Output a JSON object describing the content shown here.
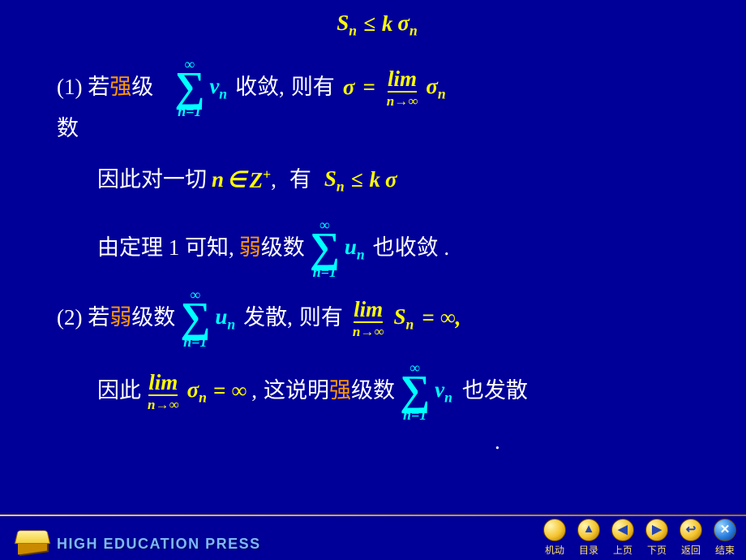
{
  "colors": {
    "background": "#000099",
    "white": "#ffffff",
    "yellow": "#ffff00",
    "cyan": "#00ffff",
    "orange": "#ff9900",
    "footerAccent": "#ffd24a",
    "pressText": "#7db8ff"
  },
  "topIneq": {
    "lhs": "S",
    "lsub": "n",
    "op": "≤",
    "k": "k",
    "sigma": "σ",
    "rsub": "n"
  },
  "line1": {
    "prefix": "(1) 若",
    "strong": "强",
    "suffixA": "级",
    "suffixB": "数",
    "sumTop": "∞",
    "sumBottom": "n=1",
    "term": "v",
    "termSub": "n",
    "converge": "收敛,",
    "then": "则有",
    "eqL": "σ",
    "eqOp": "=",
    "limTop": "lim",
    "limBot": "n→∞",
    "eqR": "σ",
    "eqRSub": "n"
  },
  "line2": {
    "a": "因此对一切",
    "n": "n",
    "in": "∈",
    "Z": "Z",
    "plus": "+",
    "comma": ",",
    "have": "有",
    "S": "S",
    "Ssub": "n",
    "op": "≤",
    "k": "k",
    "sigma": "σ"
  },
  "line3": {
    "a": "由定理 1 可知,",
    "weak": "弱",
    "b": "级数",
    "sumTop": "∞",
    "sumBottom": "n=1",
    "term": "u",
    "termSub": "n",
    "c": "也收敛 ."
  },
  "line4": {
    "prefix": "(2) 若",
    "weak": "弱",
    "a": "级数",
    "sumTop": "∞",
    "sumBottom": "n=1",
    "term": "u",
    "termSub": "n",
    "diverge": "发散,",
    "then": "则有",
    "limTop": "lim",
    "limBot": "n→∞",
    "S": "S",
    "Ssub": "n",
    "eq": "= ∞,"
  },
  "line5": {
    "a": "因此",
    "limTop": "lim",
    "limBot": "n→∞",
    "sigma": "σ",
    "ssub": "n",
    "eq": "= ∞",
    "comma": ",",
    "b": "这说明",
    "strong": "强",
    "c": "级数",
    "sumTop": "∞",
    "sumBottom": "n=1",
    "term": "v",
    "termSub": "n",
    "d": "也发散",
    "dot": "."
  },
  "footer": {
    "press": "HIGH EDUCATION PRESS",
    "nav": [
      {
        "label": "机动",
        "glyph": "",
        "name": "nav-auto"
      },
      {
        "label": "目录",
        "glyph": "▲",
        "name": "nav-contents"
      },
      {
        "label": "上页",
        "glyph": "◀",
        "name": "nav-prev"
      },
      {
        "label": "下页",
        "glyph": "▶",
        "name": "nav-next"
      },
      {
        "label": "返回",
        "glyph": "↩",
        "name": "nav-back"
      },
      {
        "label": "结束",
        "glyph": "✕",
        "name": "nav-end",
        "close": true
      }
    ]
  }
}
